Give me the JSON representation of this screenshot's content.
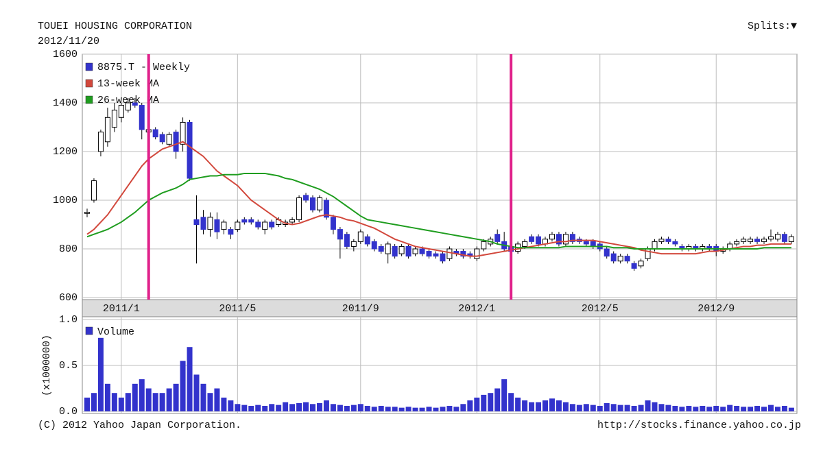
{
  "chart_data": [
    {
      "type": "candlestick",
      "title": "TOUEI HOUSING CORPORATION",
      "subtitle": "2012/11/20",
      "categories": [
        null,
        null,
        null,
        null,
        null,
        "2011/1",
        null,
        null,
        null,
        null,
        null,
        null,
        null,
        null,
        null,
        null,
        null,
        null,
        null,
        null,
        null,
        null,
        "2011/5",
        null,
        null,
        null,
        null,
        null,
        null,
        null,
        null,
        null,
        null,
        null,
        null,
        null,
        null,
        null,
        null,
        null,
        "2011/9",
        null,
        null,
        null,
        null,
        null,
        null,
        null,
        null,
        null,
        null,
        null,
        null,
        null,
        null,
        null,
        null,
        "2012/1",
        null,
        null,
        null,
        null,
        null,
        null,
        null,
        null,
        null,
        null,
        null,
        null,
        null,
        null,
        null,
        null,
        null,
        "2012/5",
        null,
        null,
        null,
        null,
        null,
        null,
        null,
        null,
        null,
        null,
        null,
        null,
        null,
        null,
        null,
        null,
        "2012/9",
        null,
        null,
        null,
        null,
        null,
        null,
        null,
        null,
        null,
        null,
        null
      ],
      "series": [
        {
          "name": "8875.T - Weekly",
          "color": "#3333cc",
          "up_color": "#ffffff",
          "open": [
            950,
            1000,
            1200,
            1240,
            1300,
            1340,
            1370,
            1400,
            1390,
            1280,
            1290,
            1270,
            1230,
            1280,
            1230,
            1320,
            920,
            930,
            880,
            920,
            880,
            880,
            880,
            920,
            920,
            910,
            880,
            910,
            900,
            900,
            910,
            920,
            1020,
            1010,
            960,
            1000,
            930,
            880,
            860,
            810,
            830,
            850,
            830,
            810,
            780,
            810,
            780,
            810,
            780,
            800,
            790,
            780,
            780,
            760,
            790,
            790,
            780,
            760,
            800,
            820,
            860,
            830,
            810,
            790,
            810,
            850,
            850,
            820,
            840,
            860,
            820,
            860,
            840,
            830,
            830,
            820,
            800,
            780,
            750,
            770,
            740,
            730,
            760,
            800,
            830,
            840,
            830,
            810,
            800,
            810,
            800,
            810,
            810,
            790,
            800,
            820,
            830,
            830,
            840,
            830,
            840,
            840,
            860,
            830
          ],
          "high": [
            965,
            1090,
            1290,
            1380,
            1400,
            1400,
            1420,
            1420,
            1400,
            1300,
            1300,
            1280,
            1280,
            1290,
            1340,
            1330,
            1020,
            960,
            950,
            950,
            920,
            890,
            920,
            930,
            930,
            920,
            920,
            920,
            930,
            920,
            930,
            1020,
            1030,
            1020,
            1020,
            1010,
            940,
            890,
            870,
            840,
            880,
            860,
            840,
            820,
            830,
            820,
            820,
            820,
            810,
            810,
            800,
            790,
            790,
            810,
            800,
            800,
            790,
            810,
            840,
            850,
            880,
            870,
            820,
            830,
            840,
            860,
            860,
            850,
            870,
            870,
            870,
            870,
            850,
            840,
            840,
            830,
            810,
            790,
            780,
            780,
            750,
            760,
            810,
            840,
            850,
            850,
            840,
            820,
            820,
            820,
            820,
            820,
            820,
            810,
            830,
            840,
            850,
            850,
            850,
            850,
            880,
            870,
            870,
            860
          ],
          "low": [
            930,
            990,
            1180,
            1220,
            1280,
            1320,
            1360,
            1380,
            1250,
            1260,
            1250,
            1230,
            1220,
            1170,
            1200,
            1080,
            740,
            860,
            850,
            840,
            860,
            840,
            870,
            900,
            900,
            880,
            860,
            880,
            890,
            890,
            900,
            910,
            990,
            950,
            950,
            920,
            860,
            760,
            800,
            790,
            820,
            810,
            790,
            780,
            740,
            760,
            770,
            760,
            770,
            770,
            760,
            760,
            740,
            750,
            770,
            760,
            760,
            750,
            790,
            810,
            820,
            790,
            780,
            780,
            800,
            820,
            810,
            810,
            830,
            810,
            810,
            820,
            820,
            810,
            800,
            790,
            760,
            740,
            740,
            740,
            710,
            720,
            750,
            790,
            820,
            820,
            810,
            790,
            790,
            790,
            790,
            790,
            770,
            780,
            790,
            810,
            820,
            820,
            820,
            820,
            830,
            830,
            820,
            820
          ],
          "close": [
            950,
            1080,
            1280,
            1340,
            1370,
            1390,
            1400,
            1390,
            1290,
            1290,
            1260,
            1240,
            1270,
            1200,
            1320,
            1090,
            900,
            880,
            930,
            870,
            910,
            860,
            910,
            910,
            910,
            890,
            910,
            890,
            920,
            910,
            920,
            1010,
            1000,
            960,
            1010,
            930,
            880,
            840,
            810,
            830,
            870,
            820,
            800,
            790,
            820,
            770,
            810,
            770,
            800,
            780,
            770,
            770,
            750,
            800,
            780,
            770,
            770,
            800,
            830,
            840,
            830,
            800,
            790,
            820,
            830,
            830,
            820,
            840,
            860,
            820,
            860,
            830,
            830,
            820,
            810,
            800,
            770,
            750,
            770,
            750,
            720,
            750,
            800,
            830,
            840,
            830,
            820,
            800,
            810,
            800,
            810,
            800,
            790,
            800,
            820,
            830,
            840,
            840,
            830,
            840,
            850,
            860,
            830,
            850
          ]
        },
        {
          "name": "13-week MA",
          "color": "#d2483c",
          "values": [
            860,
            880,
            910,
            940,
            980,
            1020,
            1060,
            1100,
            1140,
            1170,
            1190,
            1210,
            1220,
            1230,
            1240,
            1220,
            1200,
            1180,
            1150,
            1120,
            1100,
            1080,
            1060,
            1030,
            1000,
            980,
            960,
            940,
            920,
            905,
            900,
            905,
            915,
            925,
            935,
            940,
            935,
            930,
            920,
            915,
            905,
            895,
            885,
            870,
            855,
            840,
            830,
            820,
            810,
            805,
            800,
            795,
            790,
            785,
            780,
            775,
            770,
            770,
            775,
            780,
            785,
            790,
            795,
            800,
            805,
            810,
            815,
            820,
            825,
            830,
            830,
            835,
            835,
            835,
            835,
            830,
            825,
            820,
            815,
            810,
            805,
            795,
            790,
            785,
            780,
            780,
            780,
            780,
            780,
            780,
            785,
            790,
            790,
            795,
            800,
            805,
            810,
            810,
            815,
            815,
            820,
            820,
            820,
            820
          ]
        },
        {
          "name": "26-week MA",
          "color": "#1f9d1f",
          "values": [
            850,
            860,
            870,
            880,
            895,
            910,
            930,
            950,
            975,
            1000,
            1015,
            1030,
            1040,
            1050,
            1065,
            1085,
            1090,
            1095,
            1100,
            1100,
            1105,
            1105,
            1105,
            1110,
            1110,
            1110,
            1110,
            1105,
            1100,
            1090,
            1085,
            1075,
            1065,
            1055,
            1045,
            1030,
            1015,
            995,
            975,
            955,
            935,
            920,
            915,
            910,
            905,
            900,
            895,
            890,
            885,
            880,
            875,
            870,
            865,
            860,
            855,
            850,
            845,
            840,
            835,
            830,
            820,
            815,
            810,
            805,
            805,
            805,
            805,
            805,
            805,
            805,
            810,
            810,
            810,
            810,
            810,
            810,
            810,
            805,
            805,
            805,
            800,
            800,
            800,
            800,
            800,
            800,
            800,
            800,
            800,
            800,
            800,
            800,
            800,
            800,
            800,
            800,
            800,
            800,
            800,
            805,
            805,
            805,
            805,
            805
          ]
        }
      ],
      "ylim": [
        600,
        1600
      ],
      "yticks": [
        600,
        800,
        1000,
        1200,
        1400,
        1600
      ],
      "grid": true,
      "highlight_positions": [
        9,
        62
      ],
      "highlight_color": "#e0208a"
    },
    {
      "type": "bar",
      "y_label": "(x1000000)",
      "series": [
        {
          "name": "Volume",
          "color": "#3333cc",
          "values": [
            0.15,
            0.2,
            0.8,
            0.3,
            0.2,
            0.15,
            0.2,
            0.3,
            0.35,
            0.25,
            0.2,
            0.2,
            0.25,
            0.3,
            0.55,
            0.7,
            0.4,
            0.3,
            0.2,
            0.25,
            0.15,
            0.12,
            0.08,
            0.07,
            0.06,
            0.07,
            0.06,
            0.08,
            0.07,
            0.1,
            0.08,
            0.09,
            0.1,
            0.08,
            0.09,
            0.12,
            0.08,
            0.07,
            0.06,
            0.07,
            0.08,
            0.06,
            0.05,
            0.06,
            0.05,
            0.05,
            0.04,
            0.05,
            0.04,
            0.04,
            0.05,
            0.04,
            0.05,
            0.06,
            0.05,
            0.08,
            0.12,
            0.15,
            0.18,
            0.2,
            0.25,
            0.35,
            0.2,
            0.15,
            0.12,
            0.1,
            0.1,
            0.12,
            0.14,
            0.12,
            0.1,
            0.08,
            0.07,
            0.08,
            0.07,
            0.06,
            0.09,
            0.08,
            0.07,
            0.07,
            0.06,
            0.07,
            0.12,
            0.1,
            0.08,
            0.07,
            0.06,
            0.05,
            0.06,
            0.05,
            0.06,
            0.05,
            0.06,
            0.05,
            0.07,
            0.06,
            0.05,
            0.05,
            0.06,
            0.05,
            0.07,
            0.05,
            0.06,
            0.04
          ]
        }
      ],
      "ylim": [
        0,
        1
      ],
      "yticks": [
        {
          "value": 0,
          "label": "0.0"
        },
        0.5,
        {
          "value": 1,
          "label": "1.0"
        }
      ],
      "grid": true
    }
  ],
  "splits_label": "Splits:▼",
  "footer": {
    "left": "(C) 2012 Yahoo Japan Corporation.",
    "right": "http://stocks.finance.yahoo.co.jp"
  }
}
